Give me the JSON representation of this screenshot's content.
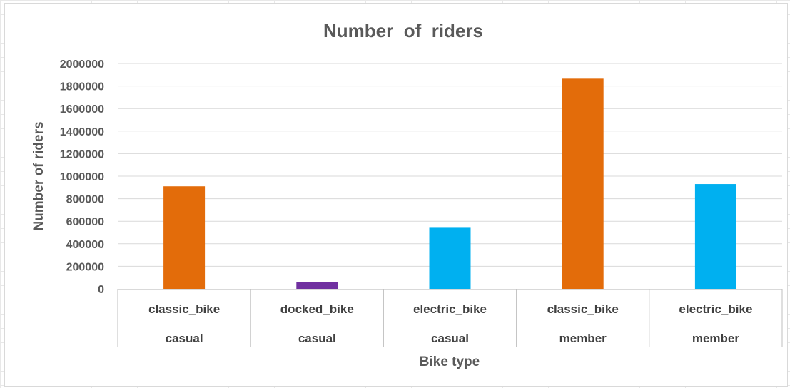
{
  "chart_data": {
    "type": "bar",
    "title": "Number_of_riders",
    "xlabel": "Bike type",
    "ylabel": "Number of riders",
    "ylim": [
      0,
      2000000
    ],
    "yticks": [
      0,
      200000,
      400000,
      600000,
      800000,
      1000000,
      1200000,
      1400000,
      1600000,
      1800000,
      2000000
    ],
    "grid": true,
    "legend": "none",
    "categories": [
      {
        "bike": "classic_bike",
        "rider": "casual"
      },
      {
        "bike": "docked_bike",
        "rider": "casual"
      },
      {
        "bike": "electric_bike",
        "rider": "casual"
      },
      {
        "bike": "classic_bike",
        "rider": "member"
      },
      {
        "bike": "electric_bike",
        "rider": "member"
      }
    ],
    "values": [
      910000,
      60000,
      548000,
      1865000,
      930000
    ],
    "colors": [
      "#E36C0A",
      "#7030A0",
      "#00B0F0",
      "#E36C0A",
      "#00B0F0"
    ]
  }
}
